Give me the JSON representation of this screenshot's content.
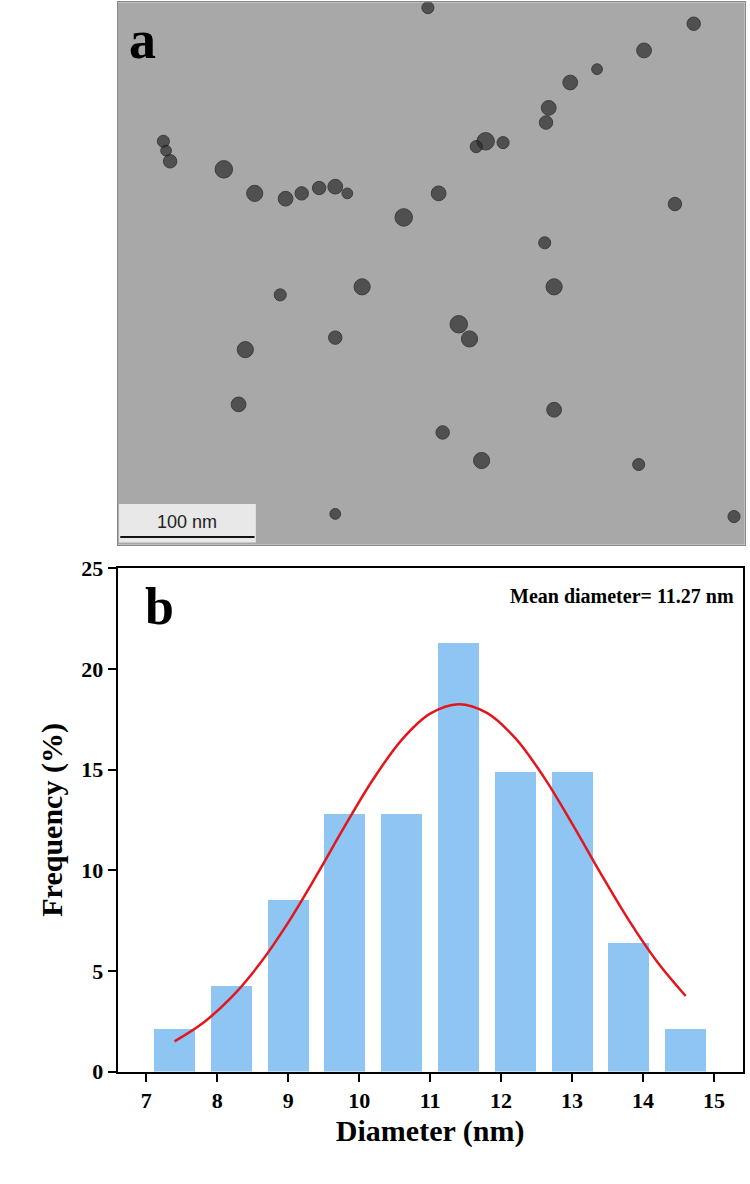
{
  "chart_data": [
    {
      "type": "scatter",
      "label": "a",
      "tick_labels": false,
      "xlim": [
        0,
        467
      ],
      "ylim": [
        406,
        0
      ],
      "x": [
        231,
        429,
        34,
        36,
        39,
        79,
        102,
        125,
        137,
        150,
        162,
        171,
        239,
        213,
        274,
        267,
        287,
        321,
        319,
        337,
        357,
        392,
        415,
        318,
        325,
        182,
        121,
        162,
        254,
        262,
        95,
        90,
        325,
        242,
        271,
        388,
        162,
        459
      ],
      "values": [
        4,
        16,
        104,
        111,
        119,
        125,
        143,
        147,
        143,
        139,
        138,
        143,
        143,
        161,
        104,
        108,
        105,
        79,
        90,
        60,
        50,
        36,
        151,
        180,
        213,
        213,
        219,
        251,
        241,
        252,
        260,
        301,
        305,
        322,
        343,
        346,
        383,
        385
      ],
      "size": [
        9,
        10,
        9,
        8,
        10,
        13,
        12,
        11,
        10,
        10,
        11,
        8,
        11,
        13,
        13,
        9,
        9,
        11,
        10,
        11,
        8,
        11,
        10,
        9,
        12,
        12,
        9,
        10,
        13,
        12,
        12,
        11,
        11,
        10,
        12,
        9,
        8,
        9
      ],
      "color": "#2b2b2b",
      "marker": "circle",
      "scale_bar": {
        "length": 100,
        "label": "100 nm"
      }
    },
    {
      "type": "histogram",
      "label": "b",
      "bins": [
        7,
        7.8,
        8.6,
        9.4,
        10.2,
        11,
        11.8,
        12.6,
        13.4,
        14.2,
        15
      ],
      "values": [
        2.13,
        4.26,
        8.51,
        12.77,
        12.77,
        21.28,
        14.89,
        14.89,
        6.38,
        2.13
      ],
      "color": "#8ec5f2",
      "fit": {
        "type": "line",
        "color": "#e3161b",
        "x": [
          7.4,
          7.8,
          8.2,
          8.6,
          9.0,
          9.4,
          9.8,
          10.2,
          10.6,
          11.0,
          11.4,
          11.8,
          12.2,
          12.6,
          13.0,
          13.4,
          13.8,
          14.2,
          14.6
        ],
        "values": [
          1.5,
          2.41,
          3.68,
          5.35,
          7.4,
          9.74,
          12.2,
          14.53,
          16.48,
          17.78,
          18.25,
          17.82,
          16.56,
          14.64,
          12.32,
          9.86,
          7.51,
          5.44,
          3.75
        ]
      },
      "annotations": [
        "Mean diameter= 11.27 nm"
      ],
      "xlabel": "Diameter (nm)",
      "ylabel": "Frequency (%)",
      "xlim": [
        6.6,
        15.4
      ],
      "ylim": [
        0,
        25
      ],
      "xticks": [
        7,
        8,
        9,
        10,
        11,
        12,
        13,
        14,
        15
      ],
      "yticks": [
        0,
        5,
        10,
        15,
        20,
        25
      ],
      "grid": false
    }
  ]
}
